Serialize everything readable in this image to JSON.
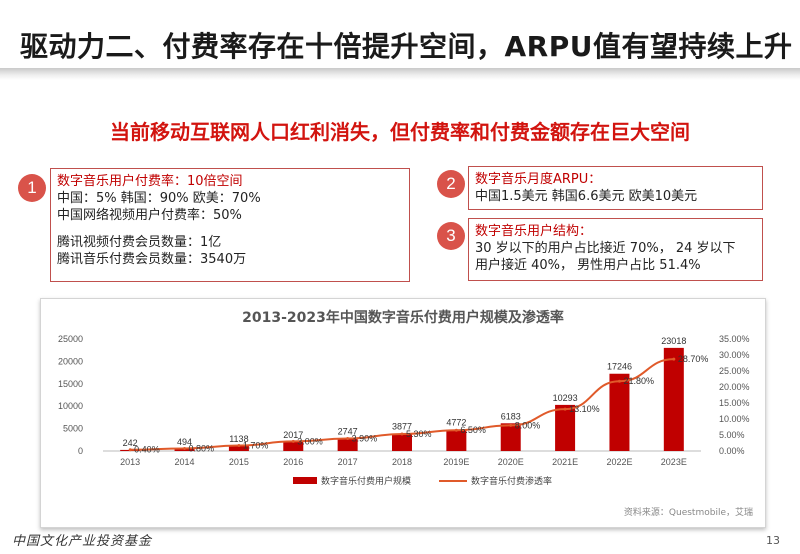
{
  "header": {
    "title": "驱动力二、付费率存在十倍提升空间，ARPU值有望持续上升",
    "subtitle": "当前移动互联网人口红利消失，但付费率和付费金额存在巨大空间"
  },
  "boxes": [
    {
      "number": "1",
      "lines": [
        {
          "text": "数字音乐用户付费率：10倍空间",
          "red": true
        },
        {
          "text": "中国：5%     韩国：90%     欧美：70%",
          "red": false
        },
        {
          "text": "中国网络视频用户付费率：50%",
          "red": false
        },
        {
          "text": "",
          "red": false
        },
        {
          "text": "腾讯视频付费会员数量：1亿",
          "red": false
        },
        {
          "text": "腾讯音乐付费会员数量：3540万",
          "red": false
        }
      ]
    },
    {
      "number": "2",
      "lines": [
        {
          "text": "数字音乐月度ARPU：",
          "red": true
        },
        {
          "text": "中国1.5美元   韩国6.6美元   欧美10美元",
          "red": false
        }
      ]
    },
    {
      "number": "3",
      "lines": [
        {
          "text": "数字音乐用户结构：",
          "red": true
        },
        {
          "text": "30 岁以下的用户占比接近 70%， 24 岁以下",
          "red": false
        },
        {
          "text": "用户接近 40%， 男性用户占比 51.4%",
          "red": false
        }
      ]
    }
  ],
  "chart_data": {
    "type": "bar",
    "title": "2013-2023年中国数字音乐付费用户规模及渗透率",
    "categories": [
      "2013",
      "2014",
      "2015",
      "2016",
      "2017",
      "2018",
      "2019E",
      "2020E",
      "2021E",
      "2022E",
      "2023E"
    ],
    "series": [
      {
        "name": "数字音乐付费用户规模",
        "type": "bar",
        "axis": "left",
        "color": "#c00000",
        "values": [
          242,
          494,
          1138,
          2017,
          2747,
          3877,
          4772,
          6183,
          10293,
          17246,
          23018
        ]
      },
      {
        "name": "数字音乐付费渗透率",
        "type": "line",
        "axis": "right",
        "color": "#e05a2a",
        "values": [
          0.4,
          0.8,
          1.7,
          3.0,
          3.9,
          5.3,
          6.5,
          8.0,
          13.1,
          21.8,
          28.7
        ],
        "labels": [
          "0.40%",
          "0.80%",
          "1.70%",
          "3.00%",
          "3.90%",
          "5.30%",
          "6.50%",
          "8.00%",
          "13.10%",
          "21.80%",
          "28.70%"
        ]
      }
    ],
    "y_left": {
      "min": 0,
      "max": 25000,
      "ticks": [
        "0",
        "5000",
        "10000",
        "15000",
        "20000",
        "25000"
      ]
    },
    "y_right": {
      "min": 0,
      "max": 35,
      "ticks": [
        "0.00%",
        "5.00%",
        "10.00%",
        "15.00%",
        "20.00%",
        "25.00%",
        "30.00%",
        "35.00%"
      ]
    },
    "legend_position": "bottom",
    "grid": false
  },
  "source": "资料来源：Questmobile，艾瑞",
  "footer": {
    "logo": "中国文化产业投资基金",
    "page": "13"
  }
}
